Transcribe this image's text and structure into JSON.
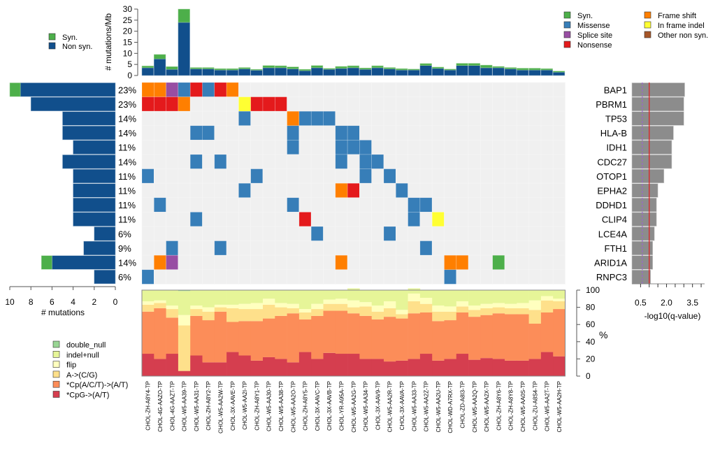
{
  "chart_data": {
    "type": "heatmap",
    "title": "",
    "samples": [
      "CHOL-ZH-A8Y4-TP",
      "CHOL-4G-AAZO-TP",
      "CHOL-4G-AAZT-TP",
      "CHOL-W5-AA39-TP",
      "CHOL-W5-AA31-TP",
      "CHOL-ZH-A8Y2-TP",
      "CHOL-W5-AA2W-TP",
      "CHOL-3X-AAVE-TP",
      "CHOL-W5-AA2I-TP",
      "CHOL-ZH-A8Y1-TP",
      "CHOL-W5-AA30-TP",
      "CHOL-W5-AA38-TP",
      "CHOL-W5-AA2O-TP",
      "CHOL-ZH-A8Y5-TP",
      "CHOL-3X-AAVC-TP",
      "CHOL-3X-AAVB-TP",
      "CHOL-YR-A95A-TP",
      "CHOL-W5-AA2G-TP",
      "CHOL-W5-AA34-TP",
      "CHOL-3X-AAV9-TP",
      "CHOL-W5-AA2R-TP",
      "CHOL-3X-AAVA-TP",
      "CHOL-W5-AA33-TP",
      "CHOL-W5-AA2Z-TP",
      "CHOL-W5-AA2U-TP",
      "CHOL-WD-A7RX-TP",
      "CHOL-ZD-A8I3-TP",
      "CHOL-W5-AA2Q-TP",
      "CHOL-W5-AA2X-TP",
      "CHOL-ZH-A8Y6-TP",
      "CHOL-ZH-A8Y8-TP",
      "CHOL-W5-AA0S-TP",
      "CHOL-ZU-A8S4-TP",
      "CHOL-W5-AA2T-TP",
      "CHOL-W5-AA2H-TP"
    ],
    "genes": [
      "BAP1",
      "PBRM1",
      "TP53",
      "HLA-B",
      "IDH1",
      "CDC27",
      "OTOP1",
      "EPHA2",
      "DDHD1",
      "CLIP4",
      "LCE4A",
      "FTH1",
      "ARID1A",
      "RNPC3"
    ],
    "gene_percent": [
      "23%",
      "23%",
      "14%",
      "14%",
      "11%",
      "14%",
      "11%",
      "11%",
      "11%",
      "11%",
      "6%",
      "9%",
      "14%",
      "6%"
    ],
    "matrix_codes": {
      "0": "none",
      "1": "Syn.",
      "2": "Missense",
      "3": "Splice site",
      "4": "Nonsense",
      "5": "Frame shift",
      "6": "In frame indel",
      "7": "Other non syn."
    },
    "matrix": [
      [
        5,
        5,
        3,
        2,
        4,
        2,
        4,
        5,
        0,
        0,
        0,
        0,
        0,
        0,
        0,
        0,
        0,
        0,
        0,
        0,
        0,
        0,
        0,
        0,
        0,
        0,
        0,
        0,
        0,
        0,
        0,
        0,
        0,
        0,
        0
      ],
      [
        4,
        4,
        4,
        5,
        0,
        0,
        0,
        0,
        6,
        4,
        4,
        4,
        0,
        0,
        0,
        0,
        0,
        0,
        0,
        0,
        0,
        0,
        0,
        0,
        0,
        0,
        0,
        0,
        0,
        0,
        0,
        0,
        0,
        0,
        0
      ],
      [
        0,
        0,
        0,
        0,
        0,
        0,
        0,
        0,
        2,
        0,
        0,
        0,
        5,
        2,
        2,
        2,
        0,
        0,
        0,
        0,
        0,
        0,
        0,
        0,
        0,
        0,
        0,
        0,
        0,
        0,
        0,
        0,
        0,
        0,
        0
      ],
      [
        0,
        0,
        0,
        0,
        2,
        2,
        0,
        0,
        0,
        0,
        0,
        0,
        2,
        0,
        0,
        0,
        2,
        2,
        0,
        0,
        0,
        0,
        0,
        0,
        0,
        0,
        0,
        0,
        0,
        0,
        0,
        0,
        0,
        0,
        0
      ],
      [
        0,
        0,
        0,
        0,
        0,
        0,
        0,
        0,
        0,
        0,
        0,
        0,
        2,
        0,
        0,
        0,
        2,
        2,
        2,
        0,
        0,
        0,
        0,
        0,
        0,
        0,
        0,
        0,
        0,
        0,
        0,
        0,
        0,
        0,
        0
      ],
      [
        0,
        0,
        0,
        0,
        2,
        0,
        2,
        0,
        0,
        0,
        0,
        0,
        0,
        0,
        0,
        0,
        2,
        0,
        2,
        2,
        0,
        0,
        0,
        0,
        0,
        0,
        0,
        0,
        0,
        0,
        0,
        0,
        0,
        0,
        0
      ],
      [
        2,
        0,
        0,
        0,
        0,
        0,
        0,
        0,
        0,
        2,
        0,
        0,
        0,
        0,
        0,
        0,
        0,
        0,
        2,
        0,
        2,
        0,
        0,
        0,
        0,
        0,
        0,
        0,
        0,
        0,
        0,
        0,
        0,
        0,
        0
      ],
      [
        0,
        0,
        0,
        0,
        0,
        0,
        0,
        0,
        2,
        0,
        0,
        0,
        0,
        0,
        0,
        0,
        5,
        4,
        0,
        0,
        0,
        2,
        0,
        0,
        0,
        0,
        0,
        0,
        0,
        0,
        0,
        0,
        0,
        0,
        0
      ],
      [
        0,
        2,
        0,
        0,
        0,
        0,
        0,
        0,
        0,
        0,
        0,
        0,
        2,
        0,
        0,
        0,
        0,
        0,
        0,
        0,
        0,
        0,
        2,
        2,
        0,
        0,
        0,
        0,
        0,
        0,
        0,
        0,
        0,
        0,
        0
      ],
      [
        0,
        0,
        0,
        0,
        2,
        0,
        0,
        0,
        0,
        0,
        0,
        0,
        0,
        4,
        0,
        0,
        0,
        0,
        0,
        0,
        0,
        0,
        2,
        0,
        6,
        0,
        0,
        0,
        0,
        0,
        0,
        0,
        0,
        0,
        0
      ],
      [
        0,
        0,
        0,
        0,
        0,
        0,
        0,
        0,
        0,
        0,
        0,
        0,
        0,
        0,
        2,
        0,
        0,
        0,
        0,
        0,
        2,
        0,
        0,
        0,
        0,
        0,
        0,
        0,
        0,
        0,
        0,
        0,
        0,
        0,
        0
      ],
      [
        0,
        0,
        2,
        0,
        0,
        0,
        2,
        0,
        0,
        0,
        0,
        0,
        0,
        0,
        0,
        0,
        0,
        0,
        0,
        0,
        0,
        0,
        0,
        2,
        0,
        0,
        0,
        0,
        0,
        0,
        0,
        0,
        0,
        0,
        0
      ],
      [
        0,
        5,
        3,
        0,
        0,
        0,
        0,
        0,
        0,
        0,
        0,
        0,
        0,
        0,
        0,
        0,
        5,
        0,
        0,
        0,
        0,
        0,
        0,
        0,
        0,
        5,
        5,
        0,
        0,
        1,
        0,
        0,
        0,
        0,
        0
      ],
      [
        2,
        0,
        0,
        0,
        0,
        0,
        0,
        0,
        0,
        0,
        0,
        0,
        0,
        0,
        0,
        0,
        0,
        0,
        0,
        0,
        0,
        0,
        0,
        0,
        0,
        2,
        0,
        0,
        0,
        0,
        0,
        0,
        0,
        0,
        0
      ]
    ],
    "mutation_burden": {
      "ylabel": "# mutations/Mb",
      "ylim": [
        0,
        30
      ],
      "yticks": [
        0,
        5,
        10,
        15,
        20,
        25,
        30
      ],
      "series": [
        {
          "name": "Non syn.",
          "values": [
            3.5,
            7.5,
            2.8,
            24,
            3,
            3,
            2.5,
            2.5,
            3,
            2.4,
            3.5,
            3.5,
            3,
            2.2,
            3.5,
            2.8,
            3.2,
            3.5,
            2.8,
            3.5,
            3,
            2.5,
            2.5,
            4.5,
            3.2,
            2.5,
            4.5,
            4.5,
            3.5,
            3.5,
            3,
            2.5,
            2.5,
            2.5,
            1.5
          ]
        },
        {
          "name": "Syn.",
          "values": [
            0.8,
            2,
            1.2,
            6,
            0.6,
            0.6,
            0.6,
            0.6,
            0.6,
            0.4,
            1,
            0.9,
            0.9,
            0.6,
            1,
            0.4,
            0.9,
            0.9,
            0.6,
            0.9,
            0.6,
            0.6,
            0.4,
            0.9,
            0.6,
            0.4,
            1,
            1,
            1.2,
            0.6,
            0.6,
            0.8,
            0.8,
            0.6,
            0.5
          ]
        }
      ]
    },
    "gene_counts": {
      "xlabel": "# mutations",
      "xlim": [
        10,
        0
      ],
      "xticks": [
        10,
        8,
        6,
        4,
        2,
        0
      ],
      "series": [
        {
          "name": "Non syn.",
          "values": [
            9,
            8,
            5,
            5,
            4,
            5,
            4,
            4,
            4,
            4,
            2,
            3,
            6,
            2
          ]
        },
        {
          "name": "Syn.",
          "values": [
            1,
            0,
            0,
            0,
            0,
            0,
            0,
            0,
            0,
            0,
            0,
            0,
            1,
            0
          ]
        }
      ]
    },
    "qvalue": {
      "xlabel": "-log10(q-value)",
      "xlim": [
        0,
        4.2
      ],
      "xticks": [
        0.5,
        2.0,
        3.5
      ],
      "minor_ticks": [
        0.5,
        1.0,
        1.5,
        2.0,
        2.5,
        3.0,
        3.5,
        4.0
      ],
      "values": [
        3.05,
        3.0,
        3.0,
        2.4,
        2.3,
        2.3,
        1.85,
        1.5,
        1.42,
        1.42,
        1.3,
        1.2,
        1.2,
        1.08
      ],
      "threshold_solid": 1.0,
      "threshold_dashed": 0.6
    },
    "mutation_spectrum": {
      "ylabel": "%",
      "ylim": [
        0,
        100
      ],
      "yticks": [
        0,
        20,
        40,
        60,
        80,
        100
      ],
      "categories_order": [
        "*CpG->(A/T)",
        "*Cp(A/C/T)->(A/T)",
        "A->(C/G)",
        "flip",
        "indel+null",
        "double_null"
      ],
      "series": [
        {
          "name": "*CpG->(A/T)",
          "values": [
            26,
            20,
            26,
            6,
            24,
            16,
            16,
            28,
            24,
            18,
            22,
            20,
            16,
            28,
            20,
            27,
            26,
            26,
            20,
            20,
            17,
            18,
            20,
            26,
            18,
            20,
            26,
            19,
            21,
            20,
            18,
            18,
            20,
            28,
            23
          ]
        },
        {
          "name": "*Cp(A/C/T)->(A/T)",
          "values": [
            49,
            59,
            42,
            0,
            46,
            49,
            59,
            35,
            40,
            46,
            45,
            50,
            57,
            38,
            50,
            49,
            50,
            47,
            50,
            46,
            52,
            49,
            53,
            48,
            46,
            45,
            48,
            50,
            50,
            53,
            54,
            54,
            41,
            46,
            55
          ]
        },
        {
          "name": "A->(C/G)",
          "values": [
            8,
            6,
            10,
            53,
            8,
            10,
            5,
            16,
            14,
            14,
            16,
            10,
            6,
            8,
            8,
            8,
            8,
            7,
            11,
            9,
            10,
            5,
            14,
            10,
            11,
            10,
            7,
            8,
            8,
            7,
            7,
            7,
            16,
            14,
            9
          ]
        },
        {
          "name": "flip",
          "values": [
            4,
            3,
            4,
            12,
            4,
            5,
            3,
            4,
            6,
            7,
            7,
            5,
            5,
            4,
            6,
            5,
            6,
            8,
            5,
            7,
            8,
            5,
            9,
            7,
            7,
            6,
            6,
            5,
            5,
            5,
            5,
            6,
            11,
            5,
            3
          ]
        },
        {
          "name": "indel+null",
          "values": [
            13,
            12,
            18,
            28,
            18,
            20,
            17,
            17,
            16,
            15,
            10,
            15,
            16,
            22,
            16,
            11,
            10,
            14,
            14,
            18,
            13,
            23,
            6,
            9,
            18,
            19,
            13,
            18,
            16,
            15,
            16,
            15,
            12,
            7,
            10
          ]
        },
        {
          "name": "double_null",
          "values": [
            0,
            0,
            0,
            1,
            0,
            0,
            0,
            0,
            0,
            0,
            0,
            0,
            0,
            0,
            0,
            0,
            0,
            0,
            0,
            0,
            0,
            0,
            0,
            0,
            0,
            0,
            0,
            0,
            0,
            0,
            0,
            0,
            0,
            0,
            0
          ]
        }
      ]
    },
    "legends": {
      "burden": [
        {
          "label": "Syn.",
          "color": "#4daf4a"
        },
        {
          "label": "Non syn.",
          "color": "#114f8c"
        }
      ],
      "mutation_types": [
        {
          "label": "Syn.",
          "color": "#4daf4a"
        },
        {
          "label": "Missense",
          "color": "#377eb8"
        },
        {
          "label": "Splice site",
          "color": "#984ea3"
        },
        {
          "label": "Nonsense",
          "color": "#e41a1c"
        },
        {
          "label": "Frame shift",
          "color": "#ff7f00"
        },
        {
          "label": "In frame indel",
          "color": "#ffff33"
        },
        {
          "label": "Other non syn.",
          "color": "#a65628"
        }
      ],
      "spectrum": [
        {
          "label": "double_null",
          "color": "#99d594"
        },
        {
          "label": "indel+null",
          "color": "#e6f598"
        },
        {
          "label": "flip",
          "color": "#ffffbf"
        },
        {
          "label": "A->(C/G)",
          "color": "#fee08b"
        },
        {
          "label": "*Cp(A/C/T)->(A/T)",
          "color": "#fc8d59"
        },
        {
          "label": "*CpG->(A/T)",
          "color": "#d53e4f"
        }
      ]
    },
    "colors": {
      "nonsyn": "#114f8c",
      "syn": "#4daf4a",
      "empty_cell": "#f0f0f0",
      "qbar": "#8c8c8c",
      "qline_solid": "#e41a1c",
      "qline_dashed": "#9966cc"
    }
  }
}
